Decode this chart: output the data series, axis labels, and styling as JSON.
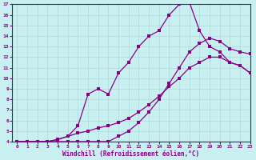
{
  "xlabel": "Windchill (Refroidissement éolien,°C)",
  "xlim": [
    -0.5,
    23
  ],
  "ylim": [
    4,
    17
  ],
  "xticks": [
    0,
    1,
    2,
    3,
    4,
    5,
    6,
    7,
    8,
    9,
    10,
    11,
    12,
    13,
    14,
    15,
    16,
    17,
    18,
    19,
    20,
    21,
    22,
    23
  ],
  "yticks": [
    4,
    5,
    6,
    7,
    8,
    9,
    10,
    11,
    12,
    13,
    14,
    15,
    16,
    17
  ],
  "bg_color": "#c8f0f0",
  "grid_color": "#b0d8d8",
  "line_color": "#880088",
  "line1_x": [
    0,
    1,
    2,
    3,
    4,
    5,
    6,
    7,
    8,
    9,
    10,
    11,
    12,
    13,
    14,
    15,
    16,
    17,
    18,
    19,
    20,
    21,
    22,
    23
  ],
  "line1_y": [
    4.0,
    4.0,
    4.0,
    4.0,
    4.0,
    4.0,
    4.0,
    4.0,
    4.0,
    4.0,
    4.5,
    5.0,
    5.8,
    6.8,
    8.0,
    9.5,
    11.0,
    12.5,
    13.3,
    13.8,
    13.5,
    12.8,
    12.5,
    12.3
  ],
  "line2_x": [
    0,
    1,
    2,
    3,
    4,
    5,
    6,
    7,
    8,
    9,
    10,
    11,
    12,
    13,
    14,
    15,
    16,
    17,
    18,
    19,
    20,
    21,
    22,
    23
  ],
  "line2_y": [
    4.0,
    4.0,
    4.0,
    4.0,
    4.2,
    4.5,
    5.5,
    8.5,
    9.0,
    8.5,
    10.5,
    11.5,
    13.0,
    14.0,
    14.5,
    16.0,
    17.0,
    17.2,
    14.5,
    13.0,
    12.5,
    11.5,
    11.2,
    10.5
  ],
  "line3_x": [
    0,
    1,
    2,
    3,
    4,
    5,
    6,
    7,
    8,
    9,
    10,
    11,
    12,
    13,
    14,
    15,
    16,
    17,
    18,
    19,
    20,
    21,
    22,
    23
  ],
  "line3_y": [
    4.0,
    4.0,
    4.0,
    4.0,
    4.2,
    4.5,
    4.8,
    5.0,
    5.3,
    5.5,
    5.8,
    6.2,
    6.8,
    7.5,
    8.3,
    9.2,
    10.0,
    11.0,
    11.5,
    12.0,
    12.0,
    11.5,
    11.2,
    10.5
  ]
}
